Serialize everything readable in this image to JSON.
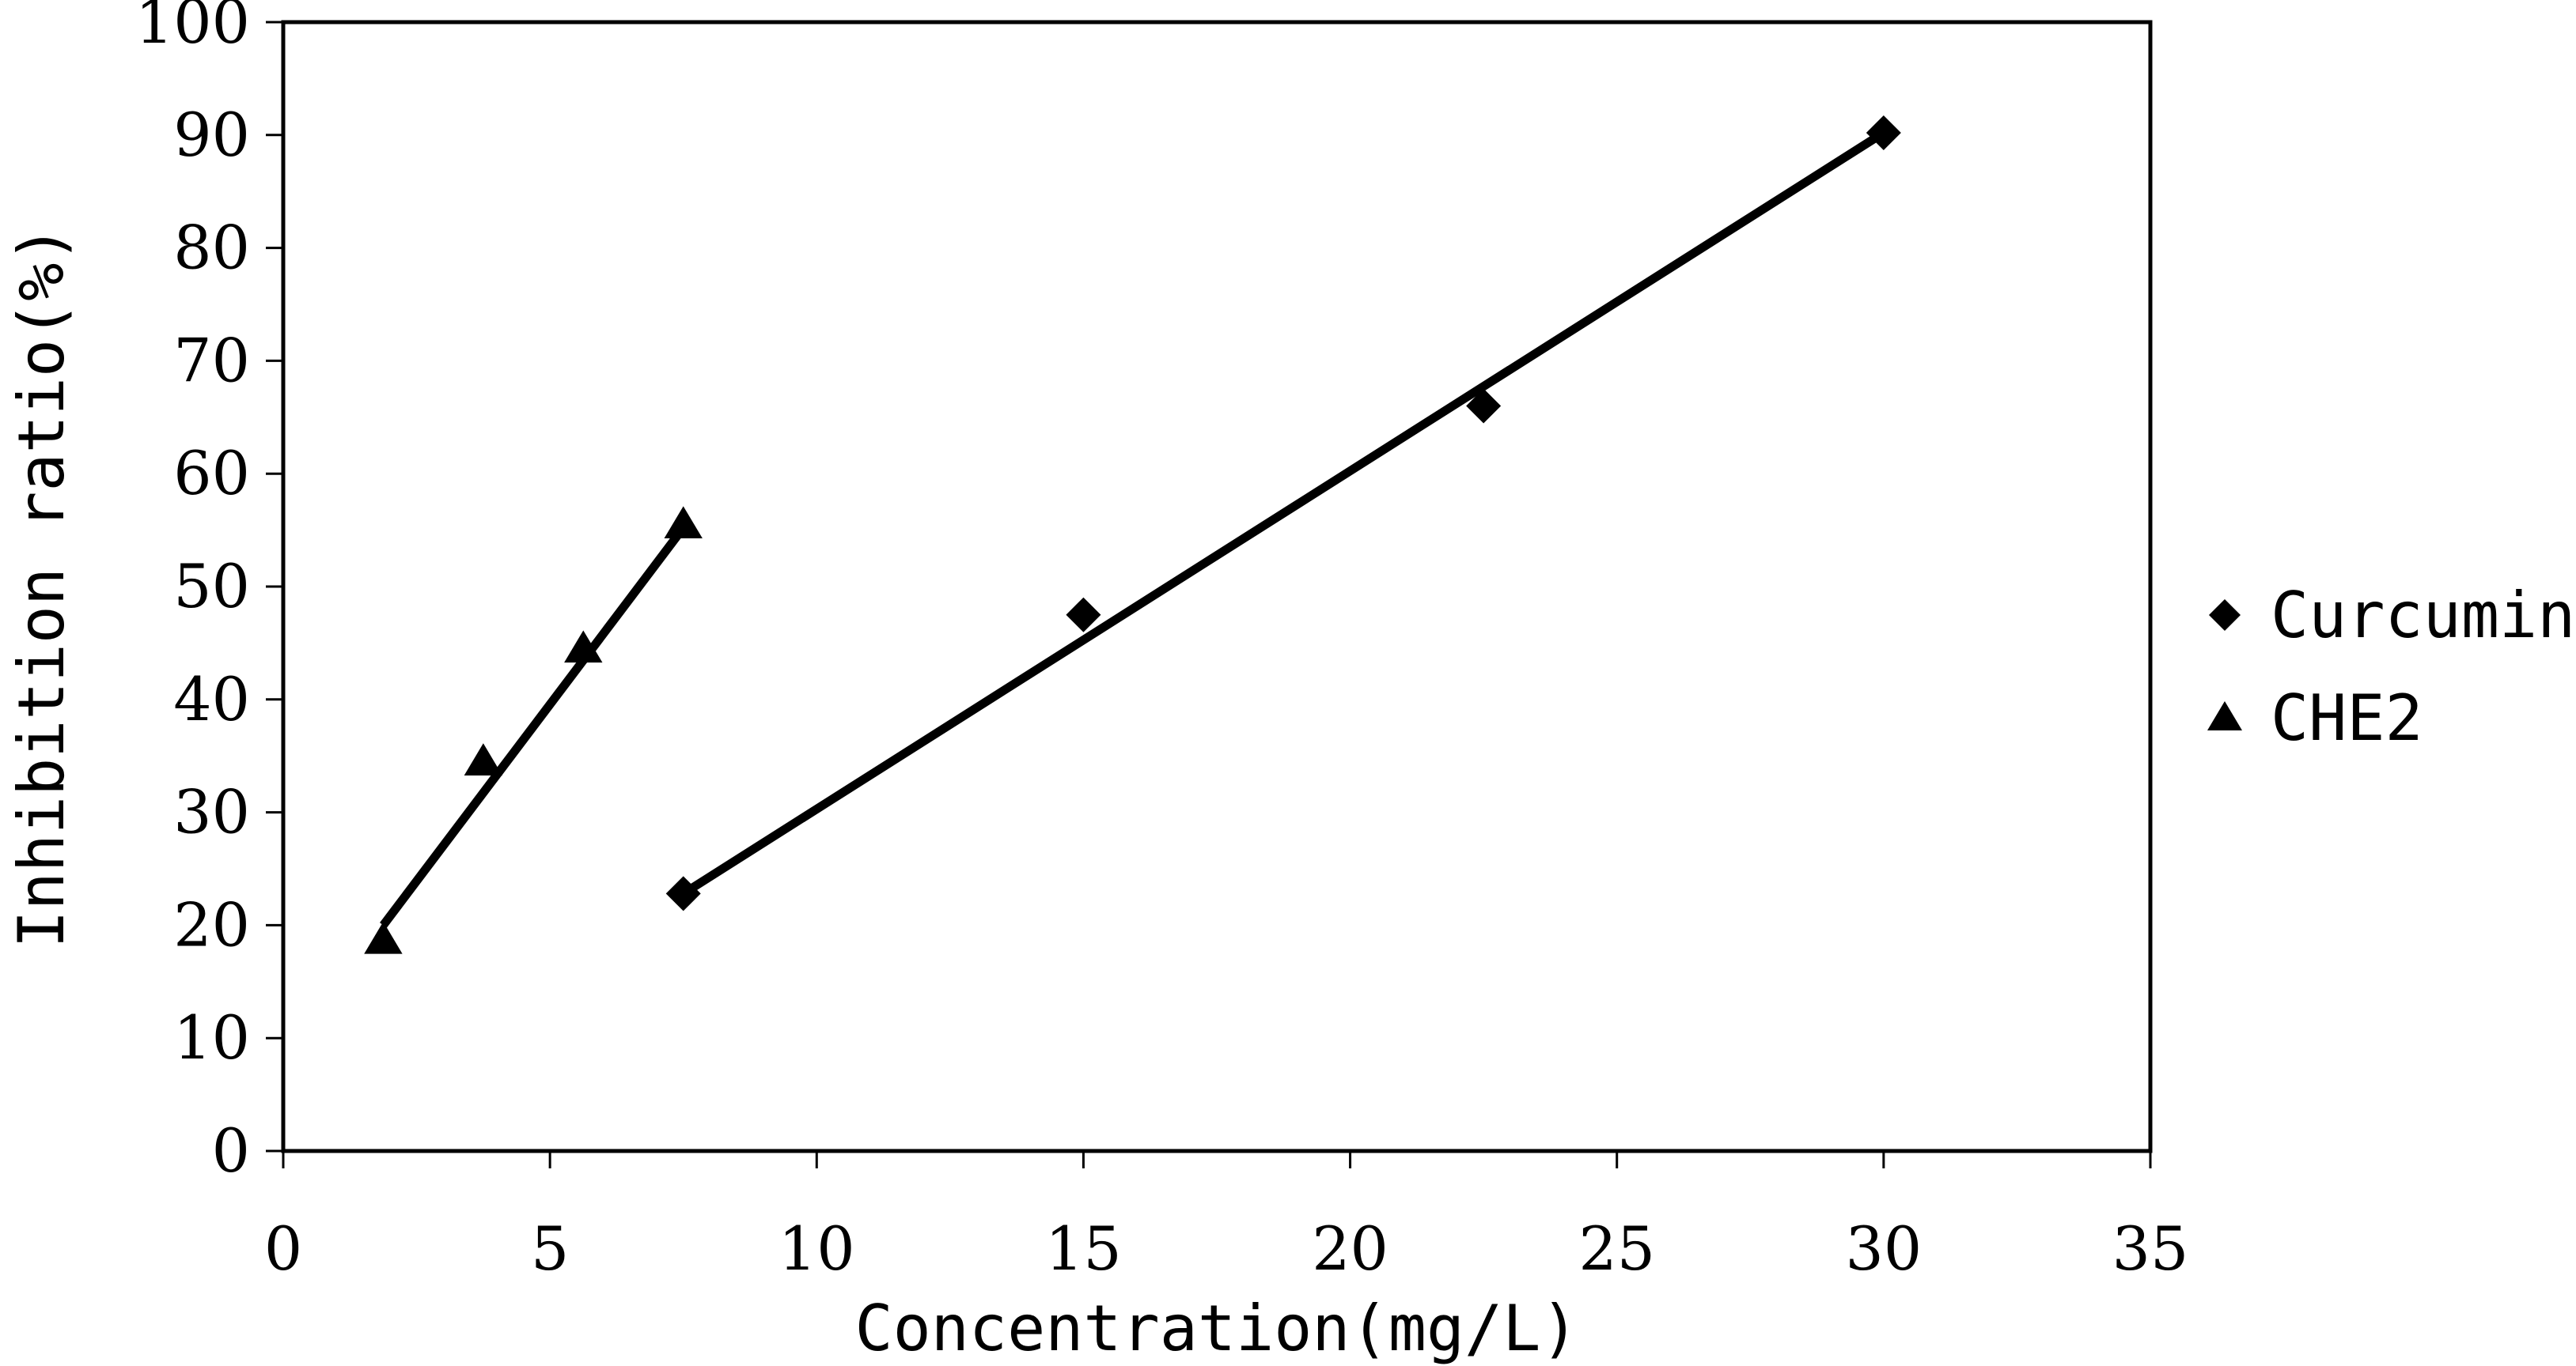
{
  "chart_data": {
    "type": "scatter",
    "title": "",
    "xlabel": "Concentration(mg/L)",
    "ylabel": "Inhibition ratio(%)",
    "xlim": [
      0,
      35
    ],
    "ylim": [
      0,
      100
    ],
    "xticks": [
      0,
      5,
      10,
      15,
      20,
      25,
      30,
      35
    ],
    "yticks": [
      0,
      10,
      20,
      30,
      40,
      50,
      60,
      70,
      80,
      90,
      100
    ],
    "grid": false,
    "legend_position": "right",
    "series": [
      {
        "name": "Curcumin",
        "marker": "diamond",
        "color": "#000000",
        "x": [
          7.5,
          15,
          22.5,
          30
        ],
        "y": [
          22.8,
          47.5,
          66,
          90.2
        ],
        "trendline": {
          "x": [
            7.5,
            30
          ],
          "y": [
            22.8,
            90.2
          ]
        }
      },
      {
        "name": "CHE2",
        "marker": "triangle",
        "color": "#000000",
        "x": [
          1.875,
          3.75,
          5.625,
          7.5
        ],
        "y": [
          18.7,
          34.5,
          44.5,
          55.5
        ],
        "trendline": {
          "x": [
            1.875,
            7.5
          ],
          "y": [
            20.0,
            55.2
          ]
        }
      }
    ]
  }
}
